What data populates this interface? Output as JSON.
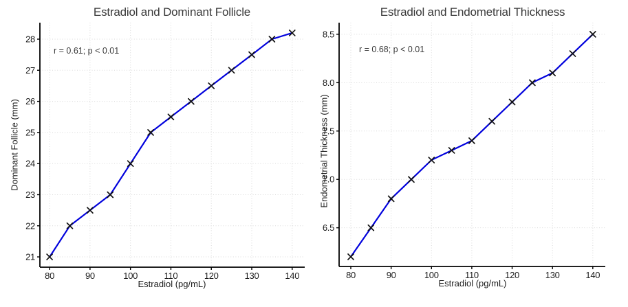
{
  "chart_data": [
    {
      "type": "line",
      "title": "Estradiol and Dominant Follicle",
      "xlabel": "Estradiol (pg/mL)",
      "ylabel": "Dominant Follicle (mm)",
      "annotation": "r = 0.61; p < 0.01",
      "x": [
        80,
        85,
        90,
        95,
        100,
        105,
        110,
        115,
        120,
        125,
        130,
        135,
        140
      ],
      "y": [
        21,
        22,
        22.5,
        23,
        24,
        25,
        25.5,
        26,
        26.5,
        27,
        27.5,
        28,
        28.2
      ],
      "xticks": {
        "values": [
          80,
          90,
          100,
          110,
          120,
          130,
          140
        ],
        "labels": [
          "80",
          "90",
          "100",
          "110",
          "120",
          "130",
          "140"
        ]
      },
      "yticks": {
        "values": [
          21,
          22,
          23,
          24,
          25,
          26,
          27,
          28
        ],
        "labels": [
          "21",
          "22",
          "23",
          "24",
          "25",
          "26",
          "27",
          "28"
        ]
      },
      "xlim": [
        77.6,
        143.1
      ],
      "ylim": [
        20.67,
        28.53
      ],
      "grid": true,
      "legend": false,
      "marker": "x",
      "line_color": "#0101dd",
      "marker_color": "#111111"
    },
    {
      "type": "line",
      "title": "Estradiol and Endometrial Thickness",
      "xlabel": "Estradiol (pg/mL)",
      "ylabel": "Endometrial Thickness (mm)",
      "annotation": "r = 0.68; p < 0.01",
      "x": [
        80,
        85,
        90,
        95,
        100,
        105,
        110,
        115,
        120,
        125,
        130,
        135,
        140
      ],
      "y": [
        6.2,
        6.5,
        6.8,
        7.0,
        7.2,
        7.3,
        7.4,
        7.6,
        7.8,
        8.0,
        8.1,
        8.3,
        8.5
      ],
      "xticks": {
        "values": [
          80,
          90,
          100,
          110,
          120,
          130,
          140
        ],
        "labels": [
          "80",
          "90",
          "100",
          "110",
          "120",
          "130",
          "140"
        ]
      },
      "yticks": {
        "values": [
          6.5,
          7.0,
          7.5,
          8.0,
          8.5
        ],
        "labels": [
          "6.5",
          "7.0",
          "7.5",
          "8.0",
          "8.5"
        ]
      },
      "xlim": [
        77.1,
        143.1
      ],
      "ylim": [
        6.1,
        8.62
      ],
      "grid": true,
      "legend": false,
      "marker": "x",
      "line_color": "#0101dd",
      "marker_color": "#111111"
    }
  ],
  "styles": {
    "background": "#ffffff",
    "title_color": "#3a3a3a",
    "annotation_color": "#3a3a3a",
    "tick_label_color": "#1c1c1c",
    "grid_color": "#d9d9d9",
    "spine_color": "#000000",
    "line_color": "#0101dd",
    "marker_color": "#111111"
  }
}
